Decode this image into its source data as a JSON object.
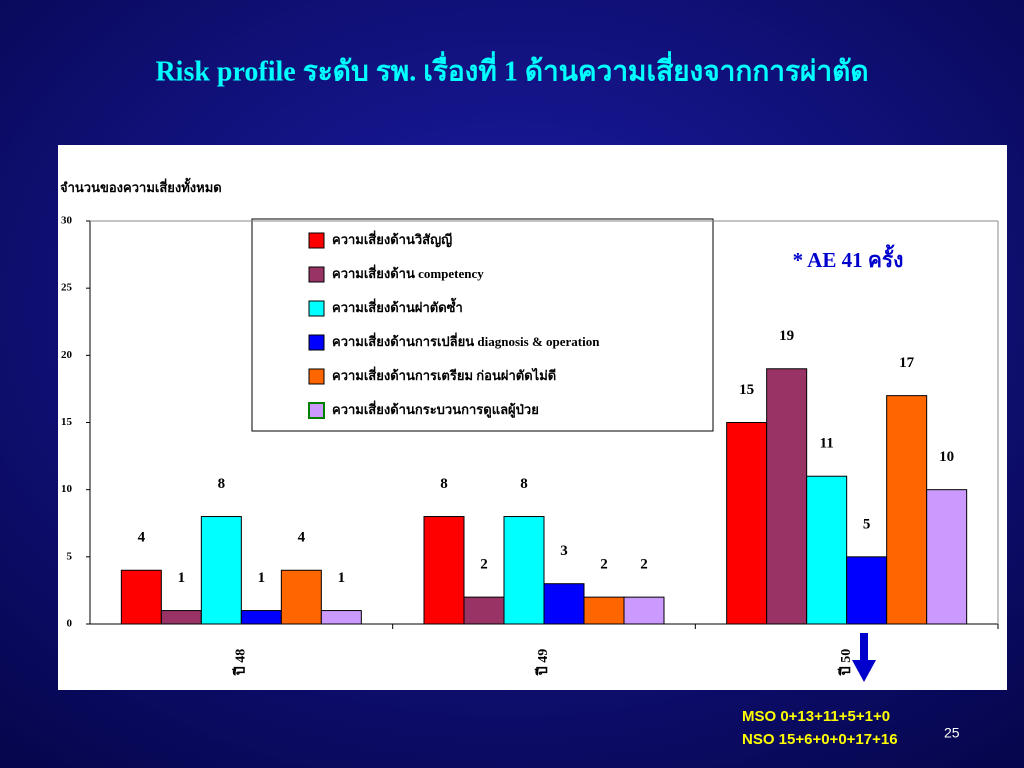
{
  "chart_data": {
    "type": "bar",
    "title": "Risk profile ระดับ รพ. เรื่องที่ 1  ด้านความเสี่ยงจากการผ่าตัด",
    "y_label": "จำนวนของความเสี่ยงทั้งหมด",
    "annotation": "* AE 41 ครั้ง",
    "categories": [
      "ปี 48",
      "ปี 49",
      "ปี 50"
    ],
    "series": [
      {
        "name": "ความเสี่ยงด้านวิสัญญี",
        "color": "#ff0000",
        "values": [
          4,
          8,
          15
        ]
      },
      {
        "name": "ความเสี่ยงด้าน competency",
        "color": "#993366",
        "values": [
          1,
          2,
          19
        ]
      },
      {
        "name": "ความเสี่ยงด้านผ่าตัดซ้ำ",
        "color": "#00ffff",
        "values": [
          8,
          8,
          11
        ]
      },
      {
        "name": "ความเสี่ยงด้านการเปลี่ยน  diagnosis & operation",
        "color": "#0000ff",
        "values": [
          1,
          3,
          5
        ]
      },
      {
        "name": "ความเสี่ยงด้านการเตรียม  ก่อนผ่าตัดไม่ดี",
        "color": "#ff6600",
        "values": [
          4,
          2,
          17
        ]
      },
      {
        "name": "ความเสี่ยงด้านกระบวนการดูแลผู้ป่วย",
        "color": "#cc99ff",
        "edgecolor": "#008000",
        "values": [
          1,
          2,
          10
        ]
      }
    ],
    "ylim": [
      0,
      30
    ],
    "yticks": [
      0,
      5,
      10,
      15,
      20,
      25,
      30
    ],
    "grid": false
  },
  "notes": [
    "MSO 0+13+11+5+1+0",
    "NSO 15+6+0+0+17+16"
  ],
  "slide_number": "25"
}
